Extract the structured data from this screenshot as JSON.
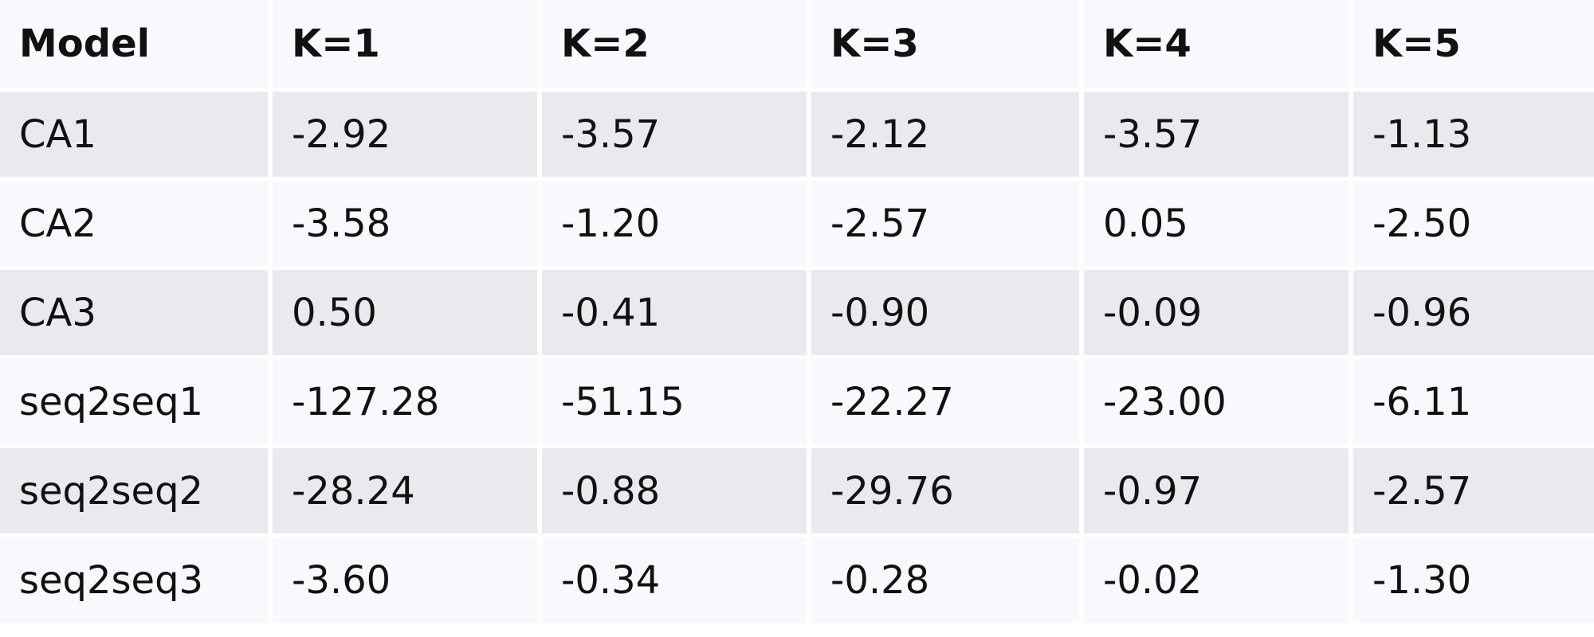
{
  "table": {
    "headers": [
      "Model",
      "K=1",
      "K=2",
      "K=3",
      "K=4",
      "K=5"
    ],
    "rows": [
      [
        "CA1",
        "-2.92",
        "-3.57",
        "-2.12",
        "-3.57",
        "-1.13"
      ],
      [
        "CA2",
        "-3.58",
        "-1.20",
        "-2.57",
        "0.05",
        "-2.50"
      ],
      [
        "CA3",
        "0.50",
        "-0.41",
        "-0.90",
        "-0.09",
        "-0.96"
      ],
      [
        "seq2seq1",
        "-127.28",
        "-51.15",
        "-22.27",
        "-23.00",
        "-6.11"
      ],
      [
        "seq2seq2",
        "-28.24",
        "-0.88",
        "-29.76",
        "-0.97",
        "-2.57"
      ],
      [
        "seq2seq3",
        "-3.60",
        "-0.34",
        "-0.28",
        "-0.02",
        "-1.30"
      ]
    ]
  },
  "colors": {
    "header_background": "#f8f9fc",
    "stripe_dark": "#e9eaed",
    "stripe_light": "#f8f9fc",
    "text": "#111111"
  }
}
